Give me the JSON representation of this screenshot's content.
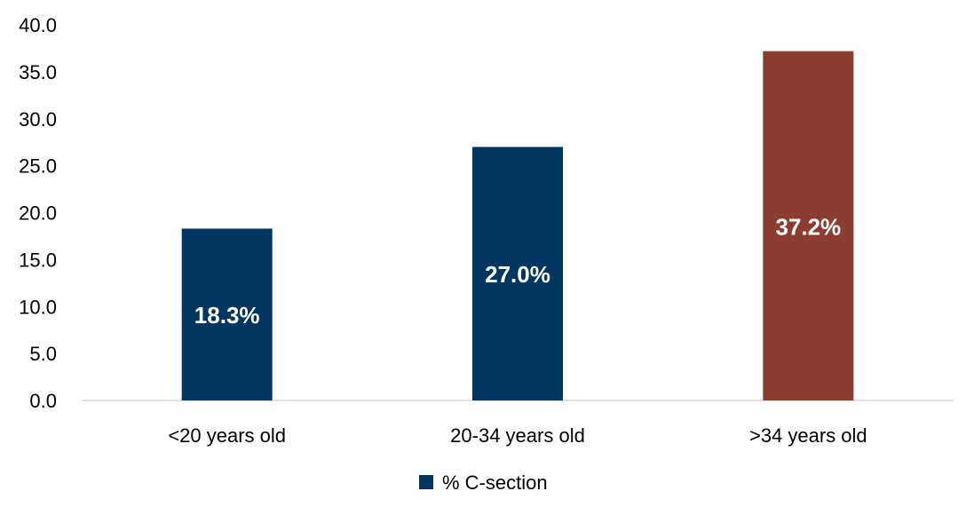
{
  "chart_data": {
    "type": "bar",
    "categories": [
      "<20 years old",
      "20-34 years old",
      ">34 years old"
    ],
    "series": [
      {
        "name": "% C-section",
        "values": [
          18.3,
          27.0,
          37.2
        ],
        "colors": [
          "#003660",
          "#003660",
          "#8b3e2f"
        ],
        "data_labels": [
          "18.3%",
          "27.0%",
          "37.2%"
        ]
      }
    ],
    "ylim": [
      0,
      40
    ],
    "yticks": [
      "0.0",
      "5.0",
      "10.0",
      "15.0",
      "20.0",
      "25.0",
      "30.0",
      "35.0",
      "40.0"
    ],
    "grid": false,
    "legend": {
      "position": "bottom",
      "label": "% C-section",
      "color": "#003660"
    }
  }
}
